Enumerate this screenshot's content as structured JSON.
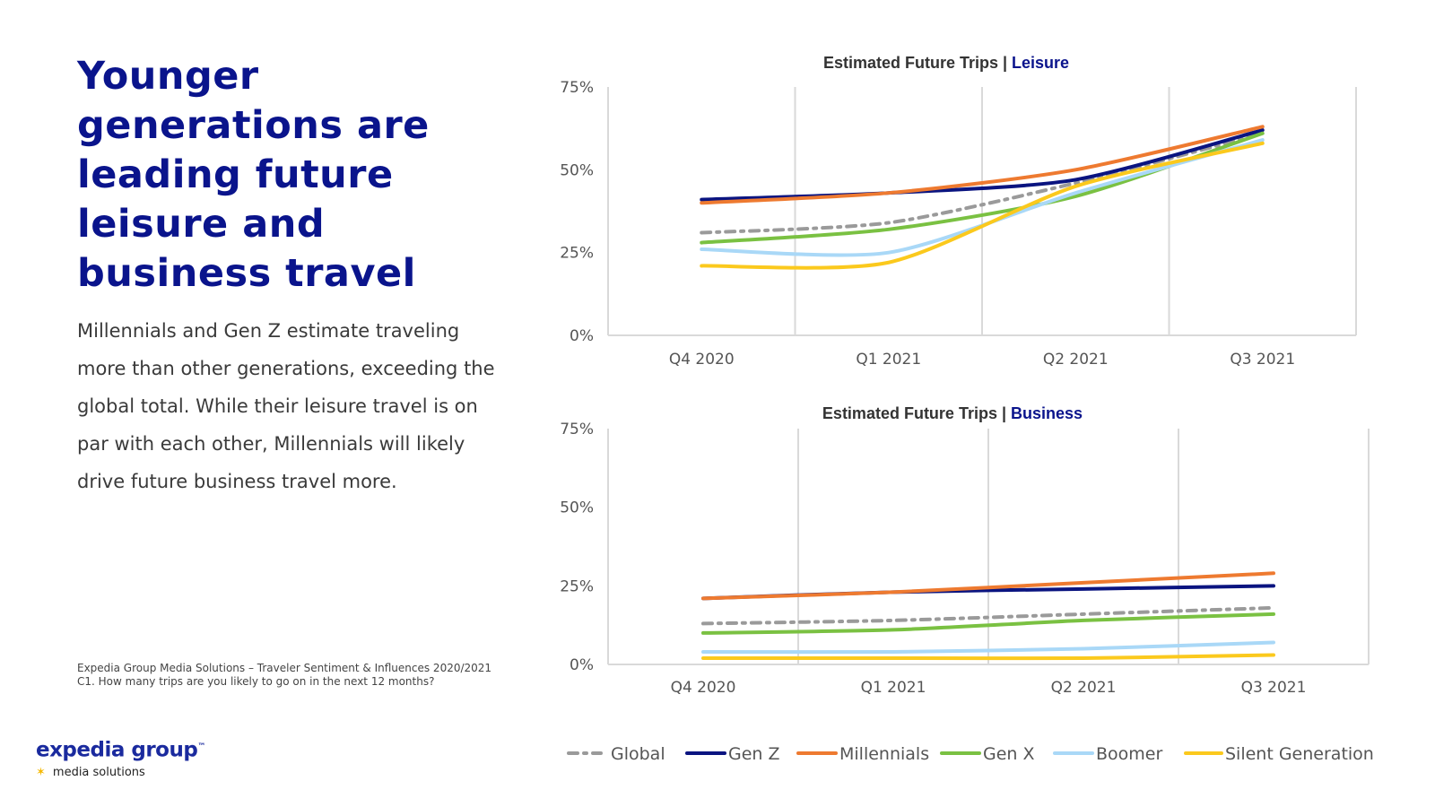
{
  "headline": "Younger generations are leading future leisure and business travel",
  "body": "Millennials and Gen Z estimate traveling more than other generations, exceeding the global total. While their leisure travel is on par with each other, Millennials will likely drive future business travel more.",
  "source": {
    "line1": "Expedia Group Media Solutions – Traveler Sentiment & Influences 2020/2021",
    "line2": "C1. How many trips are you likely to go on in the next 12 months?"
  },
  "logo": {
    "main": "expedia group",
    "tm": "™",
    "sub": "media solutions"
  },
  "colors": {
    "global": "#9a9a9a",
    "gen_z": "#0a1480",
    "millennials": "#ee7a30",
    "gen_x": "#7ac142",
    "boomer": "#a9d8f7",
    "silent": "#fbc91d",
    "title_highlight": "#0a148c"
  },
  "chart_data": [
    {
      "type": "line",
      "title": "Estimated Future Trips",
      "title_separator": "|",
      "title_highlight": "Leisure",
      "categories": [
        "Q4 2020",
        "Q1 2021",
        "Q2 2021",
        "Q3 2021"
      ],
      "y_ticks": [
        "0%",
        "25%",
        "50%",
        "75%"
      ],
      "ylim": [
        0,
        75
      ],
      "grid": "vertical",
      "series": [
        {
          "name": "Global",
          "key": "global",
          "values": [
            31,
            34,
            46,
            61
          ]
        },
        {
          "name": "Gen Z",
          "key": "gen_z",
          "values": [
            41,
            43,
            47,
            62
          ]
        },
        {
          "name": "Millennials",
          "key": "millennials",
          "values": [
            40,
            43,
            50,
            63
          ]
        },
        {
          "name": "Gen X",
          "key": "gen_x",
          "values": [
            28,
            32,
            42,
            61
          ]
        },
        {
          "name": "Boomer",
          "key": "boomer",
          "values": [
            26,
            25,
            43,
            59
          ]
        },
        {
          "name": "Silent Generation",
          "key": "silent",
          "values": [
            21,
            22,
            45,
            58
          ]
        }
      ]
    },
    {
      "type": "line",
      "title": "Estimated Future Trips",
      "title_separator": "|",
      "title_highlight": "Business",
      "categories": [
        "Q4 2020",
        "Q1 2021",
        "Q2 2021",
        "Q3 2021"
      ],
      "y_ticks": [
        "0%",
        "25%",
        "50%",
        "75%"
      ],
      "ylim": [
        0,
        75
      ],
      "grid": "vertical",
      "series": [
        {
          "name": "Global",
          "key": "global",
          "values": [
            13,
            14,
            16,
            18
          ]
        },
        {
          "name": "Gen Z",
          "key": "gen_z",
          "values": [
            21,
            23,
            24,
            25
          ]
        },
        {
          "name": "Millennials",
          "key": "millennials",
          "values": [
            21,
            23,
            26,
            29
          ]
        },
        {
          "name": "Gen X",
          "key": "gen_x",
          "values": [
            10,
            11,
            14,
            16
          ]
        },
        {
          "name": "Boomer",
          "key": "boomer",
          "values": [
            4,
            4,
            5,
            7
          ]
        },
        {
          "name": "Silent Generation",
          "key": "silent",
          "values": [
            2,
            2,
            2,
            3
          ]
        }
      ]
    }
  ],
  "legend": [
    "Global",
    "Gen Z",
    "Millennials",
    "Gen X",
    "Boomer",
    "Silent Generation"
  ]
}
